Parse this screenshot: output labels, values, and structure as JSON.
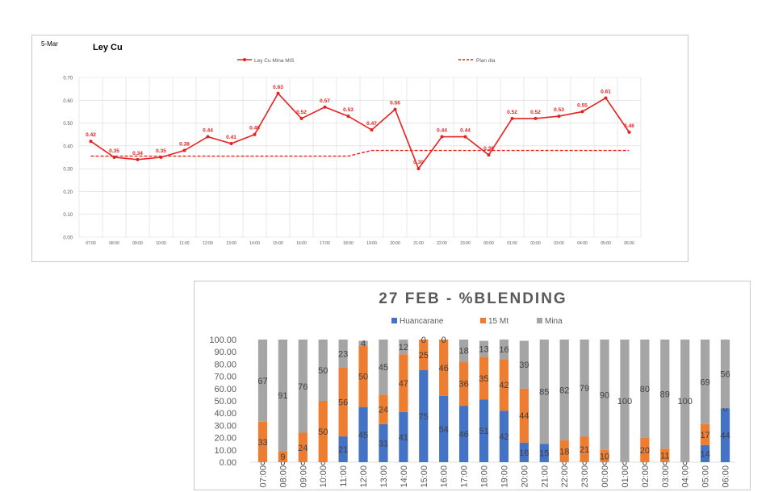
{
  "chart_data": [
    {
      "type": "line",
      "date_label": "5-Mar",
      "title": "Ley Cu",
      "categories": [
        "07:00",
        "08:00",
        "09:00",
        "10:00",
        "11:00",
        "12:00",
        "13:00",
        "14:00",
        "15:00",
        "16:00",
        "17:00",
        "18:00",
        "19:00",
        "20:00",
        "21:00",
        "22:00",
        "23:00",
        "00:00",
        "01:00",
        "02:00",
        "03:00",
        "04:00",
        "05:00",
        "06:00"
      ],
      "series": [
        {
          "name": "Ley Cu Mina MiS",
          "color": "#e8201f",
          "style": "solid-marker",
          "values": [
            0.42,
            0.35,
            0.34,
            0.35,
            0.38,
            0.44,
            0.41,
            0.45,
            0.63,
            0.52,
            0.57,
            0.53,
            0.47,
            0.56,
            0.3,
            0.44,
            0.44,
            0.36,
            0.52,
            0.52,
            0.53,
            0.55,
            0.61,
            0.46
          ],
          "labels": [
            "0.42",
            "0.35",
            "0.34",
            "0.35",
            "0.38",
            "0.44",
            "0.41",
            "0.45",
            "0.63",
            "0.52",
            "0.57",
            "0.53",
            "0.47",
            "0.56",
            "0.30",
            "0.44",
            "0.44",
            "0.36",
            "0.52",
            "0.52",
            "0.53",
            "0.55",
            "0.61",
            "0.46"
          ]
        },
        {
          "name": "Plan dia",
          "color": "#e8201f",
          "style": "dashed",
          "values": [
            0.355,
            0.355,
            0.355,
            0.355,
            0.355,
            0.355,
            0.355,
            0.355,
            0.355,
            0.355,
            0.355,
            0.355,
            0.38,
            0.38,
            0.38,
            0.38,
            0.38,
            0.38,
            0.38,
            0.38,
            0.38,
            0.38,
            0.38,
            0.38
          ]
        }
      ],
      "yticks": [
        "0.00",
        "0.10",
        "0.20",
        "0.30",
        "0.40",
        "0.50",
        "0.60",
        "0.70"
      ],
      "ylim": [
        0,
        0.7
      ],
      "grid": true,
      "legend": "top-center"
    },
    {
      "type": "bar",
      "stacked": true,
      "title": "27 FEB - %BLENDING",
      "categories": [
        "07:00",
        "08:00",
        "09:00",
        "10:00",
        "11:00",
        "12:00",
        "13:00",
        "14:00",
        "15:00",
        "16:00",
        "17:00",
        "18:00",
        "19:00",
        "20:00",
        "21:00",
        "22:00",
        "23:00",
        "00:00",
        "01:00",
        "02:00",
        "03:00",
        "04:00",
        "05:00",
        "06:00"
      ],
      "series": [
        {
          "name": "Huancarane",
          "color": "#4472c4",
          "values": [
            0,
            0,
            0,
            0,
            21,
            45,
            31,
            41,
            75,
            54,
            46,
            51,
            42,
            16,
            15,
            0,
            0,
            0,
            0,
            0,
            0,
            0,
            14,
            44
          ],
          "labels": [
            "0",
            "0",
            "0",
            "0",
            "21",
            "45",
            "31",
            "41",
            "75",
            "54",
            "46",
            "51",
            "42",
            "16",
            "15",
            "0",
            "0",
            "0",
            "0",
            "0",
            "0",
            "0",
            "14",
            "44"
          ]
        },
        {
          "name": "15 Mt",
          "color": "#ed7d31",
          "values": [
            33,
            9,
            24,
            50,
            56,
            50,
            24,
            47,
            25,
            46,
            36,
            35,
            42,
            44,
            0,
            18,
            21,
            10,
            0,
            20,
            11,
            0,
            17,
            0
          ],
          "labels": [
            "33",
            "9",
            "24",
            "50",
            "56",
            "50",
            "24",
            "47",
            "25",
            "46",
            "36",
            "35",
            "42",
            "44",
            "",
            "18",
            "21",
            "10",
            "",
            "20",
            "11",
            "",
            "17",
            "0"
          ]
        },
        {
          "name": "Mina",
          "color": "#a5a5a5",
          "values": [
            67,
            91,
            76,
            50,
            23,
            4,
            45,
            12,
            0,
            0,
            18,
            13,
            16,
            39,
            85,
            82,
            79,
            90,
            100,
            80,
            89,
            100,
            69,
            56
          ],
          "labels": [
            "67",
            "91",
            "76",
            "50",
            "23",
            "4",
            "45",
            "12",
            "0",
            "0",
            "18",
            "13",
            "16",
            "39",
            "85",
            "82",
            "79",
            "90",
            "100",
            "80",
            "89",
            "100",
            "69",
            "56"
          ]
        }
      ],
      "yticks": [
        "0.00",
        "10.00",
        "20.00",
        "30.00",
        "40.00",
        "50.00",
        "60.00",
        "70.00",
        "80.00",
        "90.00",
        "100.00"
      ],
      "ylim": [
        0,
        100
      ],
      "grid": false,
      "legend": "top-center"
    }
  ]
}
